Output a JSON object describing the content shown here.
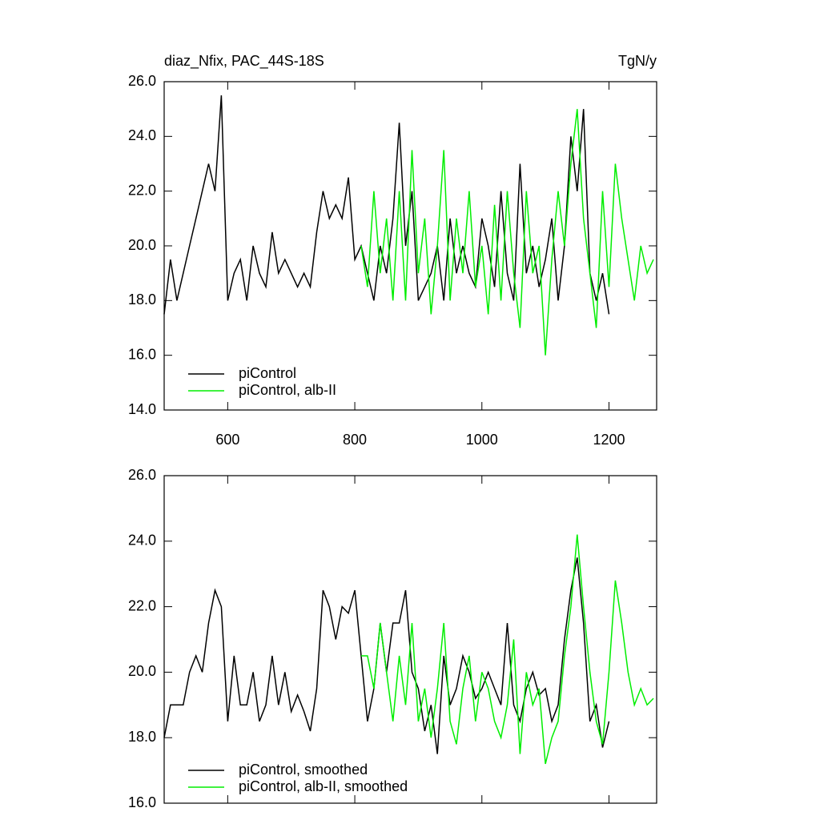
{
  "chart_data": [
    {
      "type": "line",
      "title": "diaz_Nfix, PAC_44S-18S",
      "units": "TgN/y",
      "xlim": [
        500,
        1275
      ],
      "xticks": [
        600,
        800,
        1000,
        1200
      ],
      "xtick_labels": true,
      "ylim": [
        14,
        26
      ],
      "yticks": [
        {
          "value": 14,
          "label": "14.0"
        },
        {
          "value": 16,
          "label": "16.0"
        },
        {
          "value": 18,
          "label": "18.0"
        },
        {
          "value": 20,
          "label": "20.0"
        },
        {
          "value": 22,
          "label": "22.0"
        },
        {
          "value": 24,
          "label": "24.0"
        },
        {
          "value": 26,
          "label": "26.0"
        }
      ],
      "series": [
        {
          "name": "piControl",
          "color": "#000000",
          "x": [
            500,
            510,
            520,
            530,
            540,
            550,
            560,
            570,
            580,
            590,
            600,
            610,
            620,
            630,
            640,
            650,
            660,
            670,
            680,
            690,
            700,
            710,
            720,
            730,
            740,
            750,
            760,
            770,
            780,
            790,
            800,
            810,
            820,
            830,
            840,
            850,
            860,
            870,
            880,
            890,
            900,
            910,
            920,
            930,
            940,
            950,
            960,
            970,
            980,
            990,
            1000,
            1010,
            1020,
            1030,
            1040,
            1050,
            1060,
            1070,
            1080,
            1090,
            1100,
            1110,
            1120,
            1130,
            1140,
            1150,
            1160,
            1170,
            1180,
            1190,
            1200
          ],
          "values": [
            17.5,
            19.5,
            18,
            19,
            20,
            21,
            22,
            23,
            22,
            25.5,
            18,
            19,
            19.5,
            18,
            20,
            19,
            18.5,
            20.5,
            19,
            19.5,
            19,
            18.5,
            19,
            18.5,
            20.5,
            22,
            21,
            21.5,
            21,
            22.5,
            19.5,
            20,
            19,
            18,
            20,
            19,
            21,
            24.5,
            20,
            22,
            18,
            18.5,
            19,
            20,
            18,
            21,
            19,
            20,
            19,
            18.5,
            21,
            20,
            18.5,
            22,
            19,
            18,
            23,
            19,
            20,
            18.5,
            19.5,
            21,
            18,
            20,
            24,
            22,
            25,
            19,
            18,
            19,
            17.5
          ]
        },
        {
          "name": "piControl, alb-II",
          "color": "#00ee00",
          "x": [
            810,
            820,
            830,
            840,
            850,
            860,
            870,
            880,
            890,
            900,
            910,
            920,
            930,
            940,
            950,
            960,
            970,
            980,
            990,
            1000,
            1010,
            1020,
            1030,
            1040,
            1050,
            1060,
            1070,
            1080,
            1090,
            1100,
            1110,
            1120,
            1130,
            1140,
            1150,
            1160,
            1170,
            1180,
            1190,
            1200,
            1210,
            1220,
            1230,
            1240,
            1250,
            1260,
            1270
          ],
          "values": [
            20,
            18.5,
            22,
            19,
            21,
            18,
            22,
            18,
            23.5,
            19,
            21,
            17.5,
            20,
            23.5,
            18,
            21,
            19,
            22,
            18.5,
            20,
            17.5,
            21.5,
            18,
            22,
            19,
            17,
            22,
            19,
            20,
            16,
            19.5,
            22,
            20,
            23,
            25,
            21,
            19,
            17,
            22,
            18.5,
            23,
            21,
            19.5,
            18,
            20,
            19,
            19.5
          ]
        }
      ]
    },
    {
      "type": "line",
      "xlim": [
        500,
        1275
      ],
      "xticks": [
        600,
        800,
        1000,
        1200
      ],
      "xtick_labels": false,
      "ylim": [
        16,
        26
      ],
      "yticks": [
        {
          "value": 16,
          "label": "16.0"
        },
        {
          "value": 18,
          "label": "18.0"
        },
        {
          "value": 20,
          "label": "20.0"
        },
        {
          "value": 22,
          "label": "22.0"
        },
        {
          "value": 24,
          "label": "24.0"
        },
        {
          "value": 26,
          "label": "26.0"
        }
      ],
      "series": [
        {
          "name": "piControl, smoothed",
          "color": "#000000",
          "x": [
            500,
            510,
            520,
            530,
            540,
            550,
            560,
            570,
            580,
            590,
            600,
            610,
            620,
            630,
            640,
            650,
            660,
            670,
            680,
            690,
            700,
            710,
            720,
            730,
            740,
            750,
            760,
            770,
            780,
            790,
            800,
            810,
            820,
            830,
            840,
            850,
            860,
            870,
            880,
            890,
            900,
            910,
            920,
            930,
            940,
            950,
            960,
            970,
            980,
            990,
            1000,
            1010,
            1020,
            1030,
            1040,
            1050,
            1060,
            1070,
            1080,
            1090,
            1100,
            1110,
            1120,
            1130,
            1140,
            1150,
            1160,
            1170,
            1180,
            1190,
            1200
          ],
          "values": [
            18,
            19,
            19,
            19,
            20,
            20.5,
            20,
            21.5,
            22.5,
            22,
            18.5,
            20.5,
            19,
            19,
            20,
            18.5,
            19,
            20.5,
            19,
            20,
            18.8,
            19.3,
            18.8,
            18.2,
            19.5,
            22.5,
            22,
            21,
            22,
            21.8,
            22.5,
            20.5,
            18.5,
            19.5,
            21.5,
            20,
            21.5,
            21.5,
            22.5,
            20,
            19.5,
            18.2,
            19,
            17.5,
            20.5,
            19,
            19.5,
            20.5,
            20,
            19.2,
            19.5,
            20,
            19.5,
            19,
            21.5,
            19,
            18.5,
            19.5,
            20,
            19.3,
            19.5,
            18.5,
            19,
            21,
            22.5,
            23.5,
            21.5,
            18.5,
            19,
            17.7,
            18.5
          ]
        },
        {
          "name": "piControl, alb-II, smoothed",
          "color": "#00ee00",
          "x": [
            810,
            820,
            830,
            840,
            850,
            860,
            870,
            880,
            890,
            900,
            910,
            920,
            930,
            940,
            950,
            960,
            970,
            980,
            990,
            1000,
            1010,
            1020,
            1030,
            1040,
            1050,
            1060,
            1070,
            1080,
            1090,
            1100,
            1110,
            1120,
            1130,
            1140,
            1150,
            1160,
            1170,
            1180,
            1190,
            1200,
            1210,
            1220,
            1230,
            1240,
            1250,
            1260,
            1270
          ],
          "values": [
            20.5,
            20.5,
            19.5,
            21.5,
            20,
            18.5,
            20.5,
            19,
            21.5,
            18.5,
            19.5,
            18,
            19.5,
            21.5,
            18.5,
            17.8,
            19.5,
            20.5,
            18.5,
            20,
            19.5,
            18.5,
            18,
            19,
            21,
            17.5,
            20,
            19,
            19.5,
            17.2,
            18,
            18.5,
            20.5,
            22,
            24.2,
            22,
            20,
            18.5,
            17.8,
            20,
            22.8,
            21.5,
            20,
            19,
            19.5,
            19,
            19.2
          ]
        }
      ]
    }
  ]
}
